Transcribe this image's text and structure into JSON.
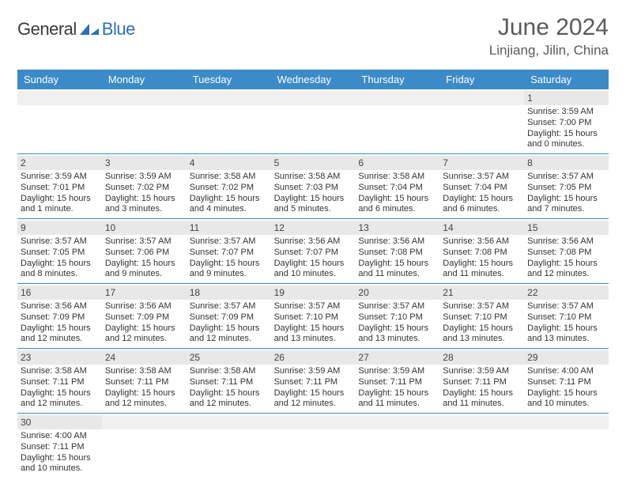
{
  "brand": {
    "text1": "General",
    "text2": "Blue"
  },
  "title": {
    "month": "June 2024",
    "location": "Linjiang, Jilin, China"
  },
  "colors": {
    "header_bg": "#3b8bc8",
    "header_text": "#ffffff",
    "daynum_bg": "#e8e8e8",
    "week_border": "#3b8bc8",
    "brand_blue": "#2d6fb8"
  },
  "day_names": [
    "Sunday",
    "Monday",
    "Tuesday",
    "Wednesday",
    "Thursday",
    "Friday",
    "Saturday"
  ],
  "weeks": [
    [
      {
        "empty": true
      },
      {
        "empty": true
      },
      {
        "empty": true
      },
      {
        "empty": true
      },
      {
        "empty": true
      },
      {
        "empty": true
      },
      {
        "day": "1",
        "sunrise": "Sunrise: 3:59 AM",
        "sunset": "Sunset: 7:00 PM",
        "daylight": "Daylight: 15 hours and 0 minutes."
      }
    ],
    [
      {
        "day": "2",
        "sunrise": "Sunrise: 3:59 AM",
        "sunset": "Sunset: 7:01 PM",
        "daylight": "Daylight: 15 hours and 1 minute."
      },
      {
        "day": "3",
        "sunrise": "Sunrise: 3:59 AM",
        "sunset": "Sunset: 7:02 PM",
        "daylight": "Daylight: 15 hours and 3 minutes."
      },
      {
        "day": "4",
        "sunrise": "Sunrise: 3:58 AM",
        "sunset": "Sunset: 7:02 PM",
        "daylight": "Daylight: 15 hours and 4 minutes."
      },
      {
        "day": "5",
        "sunrise": "Sunrise: 3:58 AM",
        "sunset": "Sunset: 7:03 PM",
        "daylight": "Daylight: 15 hours and 5 minutes."
      },
      {
        "day": "6",
        "sunrise": "Sunrise: 3:58 AM",
        "sunset": "Sunset: 7:04 PM",
        "daylight": "Daylight: 15 hours and 6 minutes."
      },
      {
        "day": "7",
        "sunrise": "Sunrise: 3:57 AM",
        "sunset": "Sunset: 7:04 PM",
        "daylight": "Daylight: 15 hours and 6 minutes."
      },
      {
        "day": "8",
        "sunrise": "Sunrise: 3:57 AM",
        "sunset": "Sunset: 7:05 PM",
        "daylight": "Daylight: 15 hours and 7 minutes."
      }
    ],
    [
      {
        "day": "9",
        "sunrise": "Sunrise: 3:57 AM",
        "sunset": "Sunset: 7:05 PM",
        "daylight": "Daylight: 15 hours and 8 minutes."
      },
      {
        "day": "10",
        "sunrise": "Sunrise: 3:57 AM",
        "sunset": "Sunset: 7:06 PM",
        "daylight": "Daylight: 15 hours and 9 minutes."
      },
      {
        "day": "11",
        "sunrise": "Sunrise: 3:57 AM",
        "sunset": "Sunset: 7:07 PM",
        "daylight": "Daylight: 15 hours and 9 minutes."
      },
      {
        "day": "12",
        "sunrise": "Sunrise: 3:56 AM",
        "sunset": "Sunset: 7:07 PM",
        "daylight": "Daylight: 15 hours and 10 minutes."
      },
      {
        "day": "13",
        "sunrise": "Sunrise: 3:56 AM",
        "sunset": "Sunset: 7:08 PM",
        "daylight": "Daylight: 15 hours and 11 minutes."
      },
      {
        "day": "14",
        "sunrise": "Sunrise: 3:56 AM",
        "sunset": "Sunset: 7:08 PM",
        "daylight": "Daylight: 15 hours and 11 minutes."
      },
      {
        "day": "15",
        "sunrise": "Sunrise: 3:56 AM",
        "sunset": "Sunset: 7:08 PM",
        "daylight": "Daylight: 15 hours and 12 minutes."
      }
    ],
    [
      {
        "day": "16",
        "sunrise": "Sunrise: 3:56 AM",
        "sunset": "Sunset: 7:09 PM",
        "daylight": "Daylight: 15 hours and 12 minutes."
      },
      {
        "day": "17",
        "sunrise": "Sunrise: 3:56 AM",
        "sunset": "Sunset: 7:09 PM",
        "daylight": "Daylight: 15 hours and 12 minutes."
      },
      {
        "day": "18",
        "sunrise": "Sunrise: 3:57 AM",
        "sunset": "Sunset: 7:09 PM",
        "daylight": "Daylight: 15 hours and 12 minutes."
      },
      {
        "day": "19",
        "sunrise": "Sunrise: 3:57 AM",
        "sunset": "Sunset: 7:10 PM",
        "daylight": "Daylight: 15 hours and 13 minutes."
      },
      {
        "day": "20",
        "sunrise": "Sunrise: 3:57 AM",
        "sunset": "Sunset: 7:10 PM",
        "daylight": "Daylight: 15 hours and 13 minutes."
      },
      {
        "day": "21",
        "sunrise": "Sunrise: 3:57 AM",
        "sunset": "Sunset: 7:10 PM",
        "daylight": "Daylight: 15 hours and 13 minutes."
      },
      {
        "day": "22",
        "sunrise": "Sunrise: 3:57 AM",
        "sunset": "Sunset: 7:10 PM",
        "daylight": "Daylight: 15 hours and 13 minutes."
      }
    ],
    [
      {
        "day": "23",
        "sunrise": "Sunrise: 3:58 AM",
        "sunset": "Sunset: 7:11 PM",
        "daylight": "Daylight: 15 hours and 12 minutes."
      },
      {
        "day": "24",
        "sunrise": "Sunrise: 3:58 AM",
        "sunset": "Sunset: 7:11 PM",
        "daylight": "Daylight: 15 hours and 12 minutes."
      },
      {
        "day": "25",
        "sunrise": "Sunrise: 3:58 AM",
        "sunset": "Sunset: 7:11 PM",
        "daylight": "Daylight: 15 hours and 12 minutes."
      },
      {
        "day": "26",
        "sunrise": "Sunrise: 3:59 AM",
        "sunset": "Sunset: 7:11 PM",
        "daylight": "Daylight: 15 hours and 12 minutes."
      },
      {
        "day": "27",
        "sunrise": "Sunrise: 3:59 AM",
        "sunset": "Sunset: 7:11 PM",
        "daylight": "Daylight: 15 hours and 11 minutes."
      },
      {
        "day": "28",
        "sunrise": "Sunrise: 3:59 AM",
        "sunset": "Sunset: 7:11 PM",
        "daylight": "Daylight: 15 hours and 11 minutes."
      },
      {
        "day": "29",
        "sunrise": "Sunrise: 4:00 AM",
        "sunset": "Sunset: 7:11 PM",
        "daylight": "Daylight: 15 hours and 10 minutes."
      }
    ],
    [
      {
        "day": "30",
        "sunrise": "Sunrise: 4:00 AM",
        "sunset": "Sunset: 7:11 PM",
        "daylight": "Daylight: 15 hours and 10 minutes."
      },
      {
        "empty": true
      },
      {
        "empty": true
      },
      {
        "empty": true
      },
      {
        "empty": true
      },
      {
        "empty": true
      },
      {
        "empty": true
      }
    ]
  ]
}
